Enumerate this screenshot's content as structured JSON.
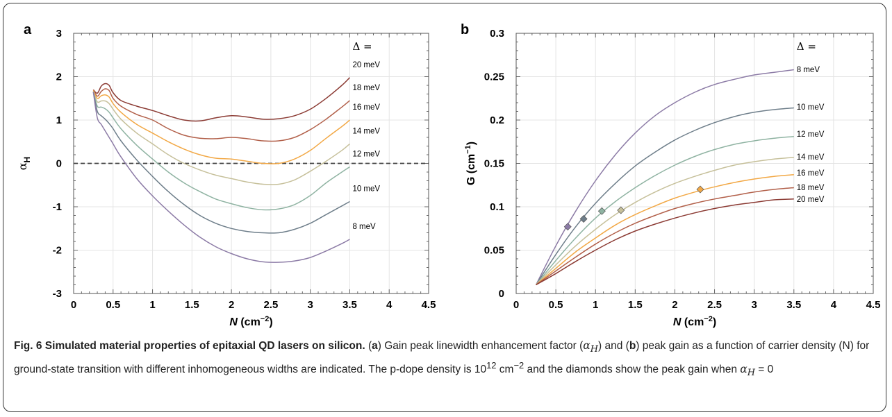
{
  "caption": {
    "fig_label": "Fig. 6",
    "title": "Simulated material properties of epitaxial QD lasers on silicon.",
    "part_a": "a",
    "text1": " Gain peak linewidth enhancement factor (",
    "alpha_sym": "α",
    "alpha_sub": "H",
    "text2": ") and (",
    "part_b": "b",
    "text3": ") peak gain as a function of carrier density (N) for ground-state transition with different inhomogeneous widths are indicated. The p-dope density is 10",
    "exp12": "12",
    "text4": " cm",
    "exp_neg2": "−2",
    "text5": " and the diamonds show the peak gain when ",
    "cond": " = 0"
  },
  "chart_data": [
    {
      "panel": "a",
      "type": "line",
      "xlabel": "N (cm−2)",
      "ylabel": "αH",
      "xlim": [
        0,
        4.5
      ],
      "ylim": [
        -3,
        3
      ],
      "xticks": [
        "0",
        "0.5",
        "1",
        "1.5",
        "2",
        "2.5",
        "3",
        "3.5",
        "4",
        "4.5"
      ],
      "yticks": [
        "-3",
        "-2",
        "-1",
        "0",
        "1",
        "2",
        "3"
      ],
      "legend_title": "Δ =",
      "reference_line": 0,
      "grid": true,
      "series": [
        {
          "name": "20 meV",
          "color": "#8b3a33",
          "x": [
            0.25,
            0.3,
            0.35,
            0.4,
            0.45,
            0.5,
            0.6,
            0.8,
            1.0,
            1.2,
            1.4,
            1.6,
            1.8,
            2.0,
            2.2,
            2.4,
            2.6,
            2.8,
            3.0,
            3.2,
            3.4,
            3.5
          ],
          "y": [
            1.7,
            1.62,
            1.78,
            1.84,
            1.8,
            1.63,
            1.45,
            1.32,
            1.22,
            1.1,
            1.0,
            0.98,
            1.05,
            1.1,
            1.07,
            1.02,
            1.03,
            1.1,
            1.25,
            1.5,
            1.8,
            1.98
          ]
        },
        {
          "name": "18 meV",
          "color": "#b2604a",
          "x": [
            0.25,
            0.3,
            0.35,
            0.4,
            0.45,
            0.5,
            0.6,
            0.8,
            1.0,
            1.2,
            1.4,
            1.6,
            1.8,
            2.0,
            2.2,
            2.4,
            2.6,
            2.8,
            3.0,
            3.2,
            3.4,
            3.5
          ],
          "y": [
            1.7,
            1.55,
            1.66,
            1.72,
            1.68,
            1.5,
            1.32,
            1.13,
            1.0,
            0.8,
            0.65,
            0.58,
            0.57,
            0.6,
            0.57,
            0.52,
            0.52,
            0.6,
            0.78,
            1.02,
            1.3,
            1.45
          ]
        },
        {
          "name": "16 meV",
          "color": "#f2a845",
          "x": [
            0.25,
            0.3,
            0.35,
            0.4,
            0.45,
            0.5,
            0.6,
            0.8,
            1.0,
            1.2,
            1.4,
            1.6,
            1.8,
            2.0,
            2.2,
            2.4,
            2.6,
            2.8,
            3.0,
            3.2,
            3.4,
            3.5
          ],
          "y": [
            1.68,
            1.5,
            1.56,
            1.58,
            1.53,
            1.38,
            1.18,
            0.9,
            0.7,
            0.5,
            0.33,
            0.2,
            0.12,
            0.1,
            0.05,
            0.0,
            0.0,
            0.1,
            0.3,
            0.58,
            0.85,
            1.0
          ]
        },
        {
          "name": "14 meV",
          "color": "#c6c09a",
          "x": [
            0.25,
            0.3,
            0.35,
            0.4,
            0.45,
            0.5,
            0.6,
            0.8,
            1.0,
            1.2,
            1.4,
            1.6,
            1.8,
            2.0,
            2.2,
            2.4,
            2.6,
            2.8,
            3.0,
            3.2,
            3.4,
            3.5
          ],
          "y": [
            1.66,
            1.42,
            1.44,
            1.44,
            1.38,
            1.25,
            1.02,
            0.7,
            0.45,
            0.2,
            0.0,
            -0.15,
            -0.27,
            -0.35,
            -0.43,
            -0.48,
            -0.48,
            -0.38,
            -0.18,
            0.05,
            0.3,
            0.45
          ]
        },
        {
          "name": "12 meV",
          "color": "#8fb3a2",
          "x": [
            0.25,
            0.3,
            0.35,
            0.4,
            0.45,
            0.5,
            0.6,
            0.8,
            1.0,
            1.2,
            1.4,
            1.6,
            1.8,
            2.0,
            2.2,
            2.4,
            2.6,
            2.8,
            3.0,
            3.2,
            3.4,
            3.5
          ],
          "y": [
            1.65,
            1.32,
            1.3,
            1.26,
            1.18,
            1.05,
            0.8,
            0.42,
            0.1,
            -0.2,
            -0.45,
            -0.65,
            -0.82,
            -0.93,
            -1.02,
            -1.07,
            -1.05,
            -0.95,
            -0.74,
            -0.45,
            -0.2,
            -0.08
          ]
        },
        {
          "name": "10 meV",
          "color": "#6e7e8a",
          "x": [
            0.25,
            0.3,
            0.35,
            0.4,
            0.45,
            0.5,
            0.6,
            0.8,
            1.0,
            1.2,
            1.4,
            1.6,
            1.8,
            2.0,
            2.2,
            2.4,
            2.6,
            2.8,
            3.0,
            3.2,
            3.4,
            3.5
          ],
          "y": [
            1.65,
            1.2,
            1.1,
            1.02,
            0.92,
            0.8,
            0.52,
            0.08,
            -0.3,
            -0.65,
            -0.95,
            -1.2,
            -1.38,
            -1.5,
            -1.57,
            -1.6,
            -1.6,
            -1.52,
            -1.38,
            -1.18,
            -0.98,
            -0.88
          ]
        },
        {
          "name": "8 meV",
          "color": "#8c7ba6",
          "x": [
            0.25,
            0.3,
            0.35,
            0.4,
            0.45,
            0.5,
            0.6,
            0.8,
            1.0,
            1.2,
            1.4,
            1.6,
            1.8,
            2.0,
            2.2,
            2.4,
            2.6,
            2.8,
            3.0,
            3.2,
            3.4,
            3.5
          ],
          "y": [
            1.64,
            1.05,
            0.9,
            0.75,
            0.6,
            0.45,
            0.15,
            -0.35,
            -0.75,
            -1.1,
            -1.42,
            -1.7,
            -1.92,
            -2.08,
            -2.2,
            -2.27,
            -2.28,
            -2.25,
            -2.17,
            -2.02,
            -1.85,
            -1.75
          ]
        }
      ]
    },
    {
      "panel": "b",
      "type": "line",
      "xlabel": "N (cm−2)",
      "ylabel": "G (cm−1)",
      "xlim": [
        0,
        4.5
      ],
      "ylim": [
        0,
        0.3
      ],
      "xticks": [
        "0",
        "0.5",
        "1",
        "1.5",
        "2",
        "2.5",
        "3",
        "3.5",
        "4",
        "4.5"
      ],
      "yticks": [
        "0",
        "0.05",
        "0.1",
        "0.15",
        "0.2",
        "0.25",
        "0.3"
      ],
      "legend_title": "Δ =",
      "grid": true,
      "series": [
        {
          "name": "8 meV",
          "color": "#8c7ba6",
          "x": [
            0.25,
            0.5,
            0.75,
            1.0,
            1.25,
            1.5,
            1.75,
            2.0,
            2.25,
            2.5,
            2.75,
            3.0,
            3.25,
            3.5
          ],
          "y": [
            0.01,
            0.055,
            0.095,
            0.13,
            0.16,
            0.185,
            0.205,
            0.22,
            0.232,
            0.241,
            0.247,
            0.252,
            0.255,
            0.258
          ],
          "marker": {
            "x": 0.65,
            "y": 0.077
          }
        },
        {
          "name": "10 meV",
          "color": "#6e7e8a",
          "x": [
            0.25,
            0.5,
            0.75,
            1.0,
            1.25,
            1.5,
            1.75,
            2.0,
            2.25,
            2.5,
            2.75,
            3.0,
            3.25,
            3.5
          ],
          "y": [
            0.01,
            0.045,
            0.077,
            0.104,
            0.127,
            0.147,
            0.163,
            0.177,
            0.188,
            0.197,
            0.204,
            0.209,
            0.212,
            0.214
          ],
          "marker": {
            "x": 0.85,
            "y": 0.086
          }
        },
        {
          "name": "12 meV",
          "color": "#8fb3a2",
          "x": [
            0.25,
            0.5,
            0.75,
            1.0,
            1.25,
            1.5,
            1.75,
            2.0,
            2.25,
            2.5,
            2.75,
            3.0,
            3.25,
            3.5
          ],
          "y": [
            0.01,
            0.038,
            0.064,
            0.087,
            0.106,
            0.122,
            0.136,
            0.148,
            0.158,
            0.166,
            0.172,
            0.176,
            0.179,
            0.181
          ],
          "marker": {
            "x": 1.08,
            "y": 0.095
          }
        },
        {
          "name": "14 meV",
          "color": "#c6c09a",
          "x": [
            0.25,
            0.5,
            0.75,
            1.0,
            1.25,
            1.5,
            1.75,
            2.0,
            2.25,
            2.5,
            2.75,
            3.0,
            3.25,
            3.5
          ],
          "y": [
            0.01,
            0.033,
            0.055,
            0.074,
            0.091,
            0.105,
            0.117,
            0.127,
            0.135,
            0.142,
            0.148,
            0.152,
            0.155,
            0.157
          ],
          "marker": {
            "x": 1.32,
            "y": 0.096
          }
        },
        {
          "name": "16 meV",
          "color": "#f2a845",
          "x": [
            0.25,
            0.5,
            0.75,
            1.0,
            1.25,
            1.5,
            1.75,
            2.0,
            2.25,
            2.5,
            2.75,
            3.0,
            3.25,
            3.5
          ],
          "y": [
            0.01,
            0.029,
            0.048,
            0.064,
            0.079,
            0.091,
            0.101,
            0.11,
            0.117,
            0.123,
            0.128,
            0.132,
            0.135,
            0.137
          ],
          "marker": {
            "x": 2.32,
            "y": 0.12
          }
        },
        {
          "name": "18 meV",
          "color": "#b2604a",
          "x": [
            0.25,
            0.5,
            0.75,
            1.0,
            1.25,
            1.5,
            1.75,
            2.0,
            2.25,
            2.5,
            2.75,
            3.0,
            3.25,
            3.5
          ],
          "y": [
            0.01,
            0.026,
            0.042,
            0.057,
            0.07,
            0.081,
            0.09,
            0.098,
            0.104,
            0.109,
            0.113,
            0.117,
            0.12,
            0.122
          ]
        },
        {
          "name": "20 meV",
          "color": "#8b3a33",
          "x": [
            0.25,
            0.5,
            0.75,
            1.0,
            1.25,
            1.5,
            1.75,
            2.0,
            2.25,
            2.5,
            2.75,
            3.0,
            3.25,
            3.5
          ],
          "y": [
            0.01,
            0.023,
            0.037,
            0.05,
            0.062,
            0.072,
            0.08,
            0.087,
            0.093,
            0.098,
            0.102,
            0.105,
            0.108,
            0.109
          ]
        }
      ]
    }
  ]
}
